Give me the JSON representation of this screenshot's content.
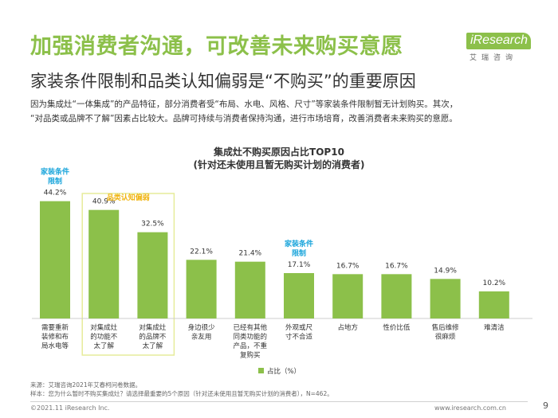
{
  "header": {
    "title": "加强消费者沟通，可改善未来购买意愿",
    "subtitle": "家装条件限制和品类认知偏弱是“不购买”的重要原因",
    "logo_text": "iResearch",
    "logo_sub": "艾瑞咨询"
  },
  "intro": {
    "line1": "因为集成灶“一体集成”的产品特征，部分消费者受“布局、水电、风格、尺寸”等家装条件限制暂无计划购买。其次，",
    "line2": "“对品类或品牌不了解”因素占比较大。品牌可持续与消费者保持沟通，进行市场培育，改善消费者未来购买的意愿。"
  },
  "colors": {
    "accent": "#8cc04a",
    "highlight_box": "#e6ec9a",
    "annotation_home": "#1aa5db",
    "annotation_cat": "#f0b410"
  },
  "chart_data": {
    "type": "bar",
    "title": "集成灶不购买原因占比TOP10",
    "subtitle": "(针对还未使用且暂无购买计划的消费者)",
    "categories": [
      [
        "需要重新",
        "装修和布",
        "局水电等"
      ],
      [
        "对集成灶",
        "的功能不",
        "太了解"
      ],
      [
        "对集成灶",
        "的品牌不",
        "太了解"
      ],
      [
        "身边很少",
        "亲友用"
      ],
      [
        "已经有其他",
        "同类功能的",
        "产品，不重",
        "复购买"
      ],
      [
        "外观或尺",
        "寸不合适"
      ],
      [
        "占地方"
      ],
      [
        "性价比低"
      ],
      [
        "售后维修",
        "很麻烦"
      ],
      [
        "难清洁"
      ]
    ],
    "values": [
      44.2,
      40.9,
      32.5,
      22.1,
      21.4,
      17.1,
      16.7,
      16.7,
      14.9,
      10.2
    ],
    "value_labels": [
      "44.2%",
      "40.9%",
      "32.5%",
      "22.1%",
      "21.4%",
      "17.1%",
      "16.7%",
      "16.7%",
      "14.9%",
      "10.2%"
    ],
    "series": [
      {
        "name": "占比（%）",
        "values": [
          44.2,
          40.9,
          32.5,
          22.1,
          21.4,
          17.1,
          16.7,
          16.7,
          14.9,
          10.2
        ]
      }
    ],
    "annotations": [
      {
        "text": [
          "家装条件",
          "限制"
        ],
        "bar_index": 0,
        "kind": "home"
      },
      {
        "text": [
          "品类认知偏弱"
        ],
        "bar_index": [
          1,
          2
        ],
        "kind": "category"
      },
      {
        "text": [
          "家装条件",
          "限制"
        ],
        "bar_index": 5,
        "kind": "home"
      }
    ],
    "legend": "bottom-center",
    "ylim": [
      0,
      50
    ]
  },
  "footer": {
    "source_line1": "来源：艾瑞咨询2021年艾春柯问卷数据。",
    "source_line2": "样本：您为什么暂时不购买集成灶？请选择最重要的5个原因（针对还未使用且暂无购买计划的消费者），N=462。",
    "copyright": "©2021.11 iResearch Inc.",
    "website": "www.iresearch.com.cn",
    "page": "9"
  }
}
